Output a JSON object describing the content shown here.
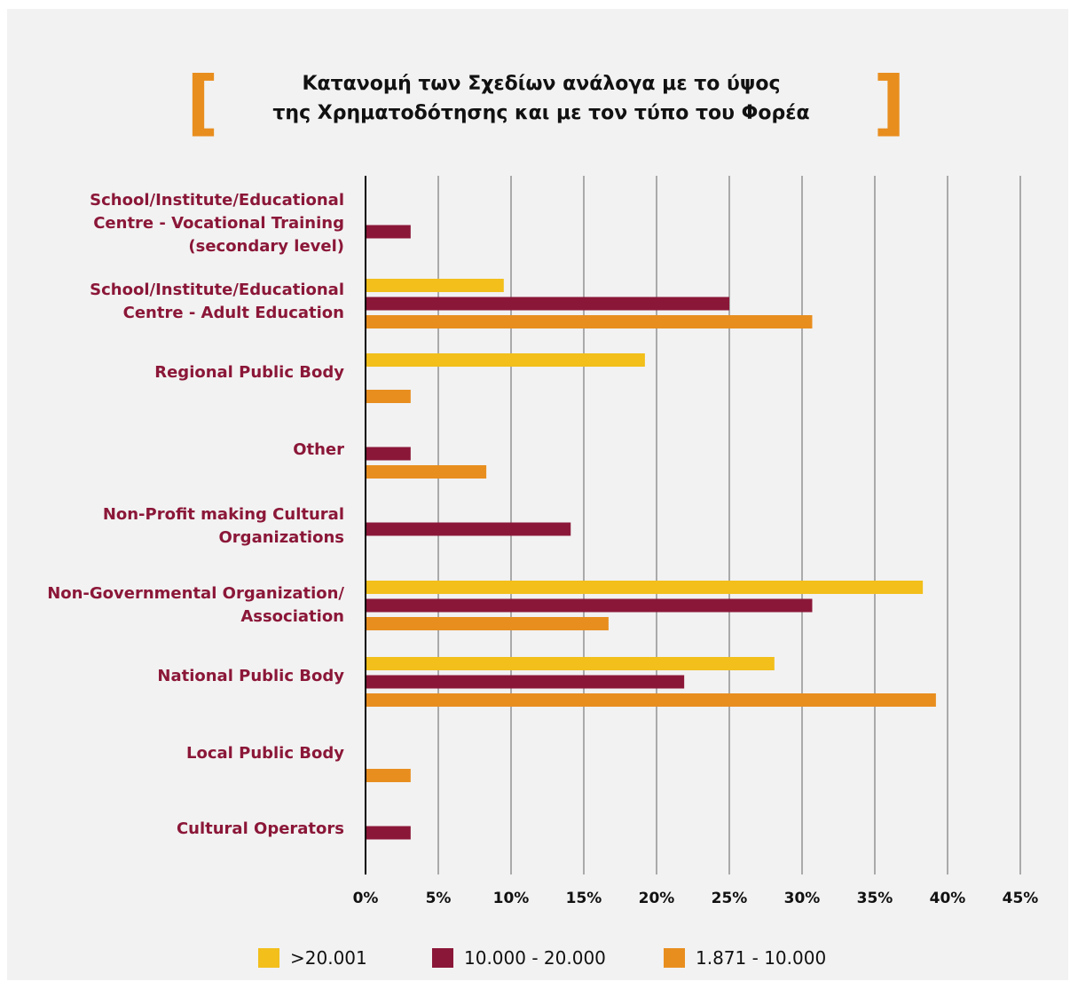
{
  "title_lines": [
    "Κατανομή των Σχεδίων ανάλογα με το ύψος",
    "της Χρηματοδότησης και με τον τύπο του Φορέα"
  ],
  "colors": {
    "series1": "#f2bf1b",
    "series2": "#8b1738",
    "series3": "#e88e1f",
    "category_label": "#8b1738",
    "grid": "#7a7a7a",
    "bracket": "#e88e1f"
  },
  "legend": [
    {
      "label": ">20.001",
      "color": "#f2bf1b"
    },
    {
      "label": "10.000 - 20.000",
      "color": "#8b1738"
    },
    {
      "label": "1.871 - 10.000",
      "color": "#e88e1f"
    }
  ],
  "chart_data": {
    "type": "bar",
    "orientation": "horizontal",
    "title": "Κατανομή των Σχεδίων ανάλογα με το ύψος της Χρηματοδότησης και με τον τύπο του Φορέα",
    "xlabel": "",
    "ylabel": "",
    "xlim": [
      0,
      45
    ],
    "x_ticks": [
      "0%",
      "5%",
      "10%",
      "15%",
      "20%",
      "25%",
      "30%",
      "35%",
      "40%",
      "45%"
    ],
    "grid": true,
    "legend_position": "bottom",
    "categories": [
      [
        "School/Institute/Educational",
        "Centre - Vocational Training",
        "(secondary level)"
      ],
      [
        "School/Institute/Educational",
        "Centre - Adult Education"
      ],
      [
        "Regional Public Body"
      ],
      [
        "Other"
      ],
      [
        "Non-Profit making Cultural",
        "Organizations"
      ],
      [
        "Non-Governmental Organization/",
        "Association"
      ],
      [
        "National Public Body"
      ],
      [
        "Local Public Body"
      ],
      [
        "Cultural Operators"
      ]
    ],
    "series": [
      {
        "name": ">20.001",
        "values": [
          0,
          9.5,
          19.2,
          0,
          0,
          38.3,
          28.1,
          0,
          0
        ]
      },
      {
        "name": "10.000 - 20.000",
        "values": [
          3.1,
          25.0,
          0,
          3.1,
          14.1,
          30.7,
          21.9,
          0,
          3.1
        ]
      },
      {
        "name": "1.871 - 10.000",
        "values": [
          0,
          30.7,
          3.1,
          8.3,
          0,
          16.7,
          39.2,
          3.1,
          0
        ]
      }
    ]
  }
}
